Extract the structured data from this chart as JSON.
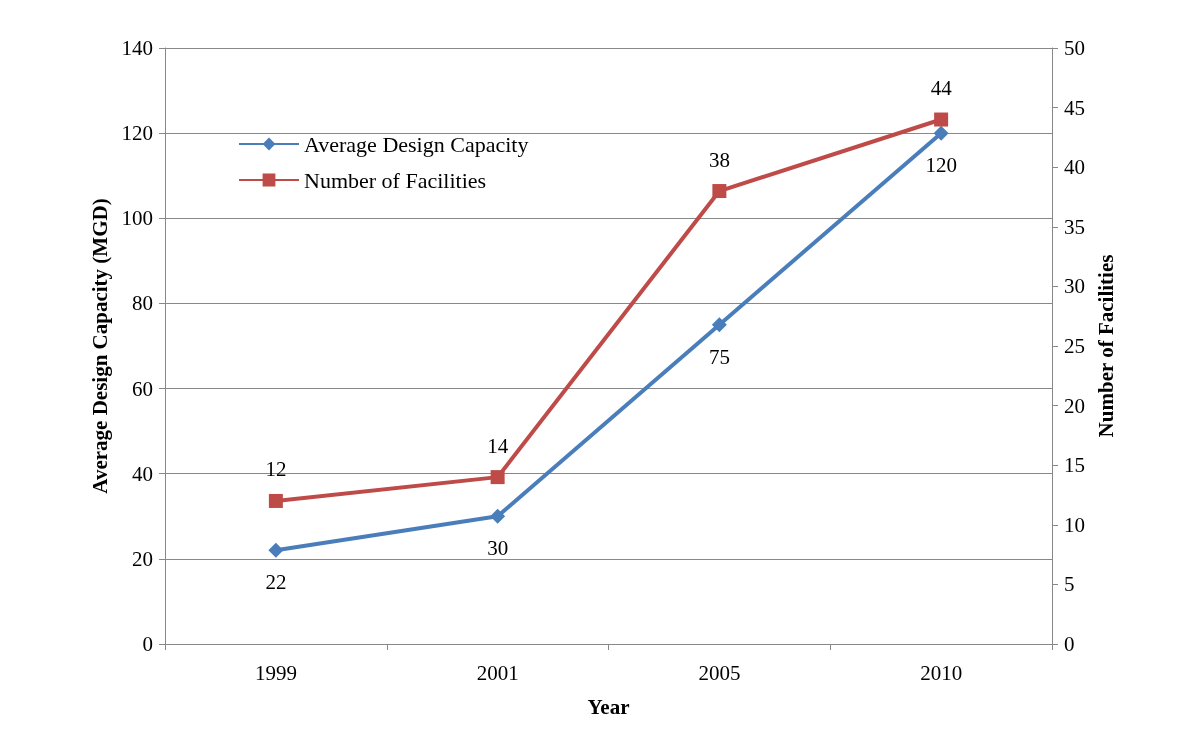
{
  "chart_data": {
    "type": "line",
    "xlabel": "Year",
    "ylabel": "Average Design Capacity (MGD)",
    "y2label": "Number of Facilities",
    "categories": [
      "1999",
      "2001",
      "2005",
      "2010"
    ],
    "series": [
      {
        "name": "Average Design Capacity",
        "color": "#4a7ebb",
        "marker": "diamond",
        "values": [
          22,
          30,
          75,
          120
        ]
      },
      {
        "name": "Number of Facilities",
        "color": "#be4b48",
        "marker": "square",
        "axis": "y2",
        "values": [
          12,
          14,
          38,
          44
        ]
      }
    ],
    "ylim": [
      0,
      140
    ],
    "yticks": [
      0,
      20,
      40,
      60,
      80,
      100,
      120,
      140
    ],
    "y2lim": [
      0,
      50
    ],
    "y2ticks": [
      0,
      5,
      10,
      15,
      20,
      25,
      30,
      35,
      40,
      45,
      50
    ],
    "grid": "y",
    "legend": "top left",
    "data_labels": true
  }
}
